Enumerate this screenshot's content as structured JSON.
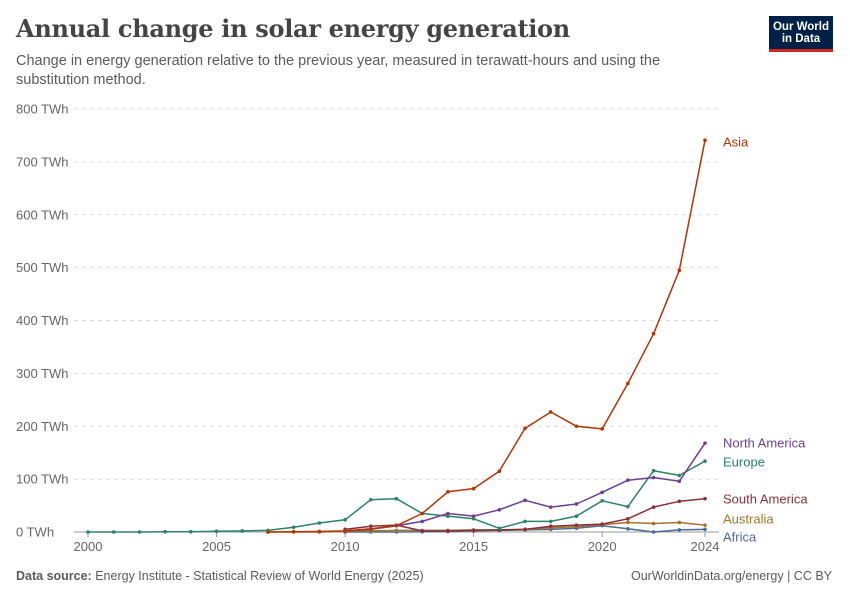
{
  "header": {
    "title": "Annual change in solar energy generation",
    "subtitle": "Change in energy generation relative to the previous year, measured in terawatt-hours and using the substitution method.",
    "logo_line1": "Our World",
    "logo_line2": "in Data"
  },
  "footer": {
    "source_label": "Data source:",
    "source_text": "Energy Institute - Statistical Review of World Energy (2025)",
    "right_text": "OurWorldinData.org/energy | CC BY"
  },
  "chart_data": {
    "type": "line",
    "title": "Annual change in solar energy generation",
    "xlabel": "",
    "ylabel": "",
    "xlim": [
      1999.5,
      2024.6
    ],
    "ylim": [
      0,
      800
    ],
    "y_unit": "TWh",
    "grid": "horizontal dashed",
    "x_ticks": [
      "2000",
      "2005",
      "2010",
      "2015",
      "2020",
      "2024"
    ],
    "x_tick_values": [
      2000,
      2005,
      2010,
      2015,
      2020,
      2024
    ],
    "y_ticks": [
      "0 TWh",
      "100 TWh",
      "200 TWh",
      "300 TWh",
      "400 TWh",
      "500 TWh",
      "600 TWh",
      "700 TWh",
      "800 TWh"
    ],
    "y_tick_values": [
      0,
      100,
      200,
      300,
      400,
      500,
      600,
      700,
      800
    ],
    "legend": "inline labels at right end of lines",
    "series": [
      {
        "name": "Asia",
        "color": "#b13507",
        "x": [
          2007,
          2008,
          2009,
          2010,
          2011,
          2012,
          2013,
          2014,
          2015,
          2016,
          2017,
          2018,
          2019,
          2020,
          2021,
          2022,
          2023,
          2024
        ],
        "values": [
          0,
          0.5,
          1,
          2,
          6,
          12,
          35,
          76,
          82,
          115,
          196,
          227,
          200,
          195,
          281,
          375,
          495,
          741
        ]
      },
      {
        "name": "North America",
        "color": "#883039",
        "x": [
          2010,
          2011,
          2012,
          2013,
          2014,
          2015,
          2016,
          2017,
          2018,
          2019,
          2020,
          2021,
          2022,
          2023,
          2024
        ],
        "values": [
          2,
          5,
          12,
          20,
          35,
          30,
          42,
          60,
          47,
          53,
          75,
          98,
          103,
          96,
          168
        ]
      },
      {
        "name": "Europe",
        "color": "#286bbb",
        "x": [
          2000,
          2001,
          2002,
          2003,
          2004,
          2005,
          2006,
          2007,
          2008,
          2009,
          2010,
          2011,
          2012,
          2013,
          2014,
          2015,
          2016,
          2017,
          2018,
          2019,
          2020,
          2021,
          2022,
          2023,
          2024
        ],
        "values": [
          0,
          0,
          0,
          0.5,
          0.5,
          1.5,
          2,
          3,
          9,
          17,
          23,
          61,
          63,
          35,
          30,
          25,
          7,
          20,
          20,
          30,
          59,
          48,
          116,
          107,
          134
        ]
      },
      {
        "name": "South America",
        "color": "#883039",
        "x": [
          2010,
          2011,
          2012,
          2013,
          2014,
          2015,
          2016,
          2017,
          2018,
          2019,
          2020,
          2021,
          2022,
          2023,
          2024
        ],
        "values": [
          5,
          11,
          13,
          2,
          2,
          3,
          4,
          5,
          11,
          13,
          15,
          25,
          47,
          58,
          63
        ]
      },
      {
        "name": "Australia",
        "color": "#a2752c",
        "x": [
          2007,
          2008,
          2009,
          2010,
          2011,
          2012,
          2013,
          2014,
          2015,
          2016,
          2017,
          2018,
          2019,
          2020,
          2021,
          2022,
          2023,
          2024
        ],
        "values": [
          0,
          0,
          0,
          1,
          2,
          3,
          3,
          3,
          4,
          4,
          5,
          8,
          10,
          14,
          18,
          16,
          18,
          13
        ]
      },
      {
        "name": "Africa",
        "color": "#4c6a9c",
        "x": [
          2010,
          2011,
          2012,
          2013,
          2014,
          2015,
          2016,
          2017,
          2018,
          2019,
          2020,
          2021,
          2022,
          2023,
          2024
        ],
        "values": [
          0,
          0,
          0,
          0.5,
          1,
          2,
          3,
          4,
          5,
          7,
          12,
          6,
          0,
          4,
          5
        ]
      }
    ]
  }
}
